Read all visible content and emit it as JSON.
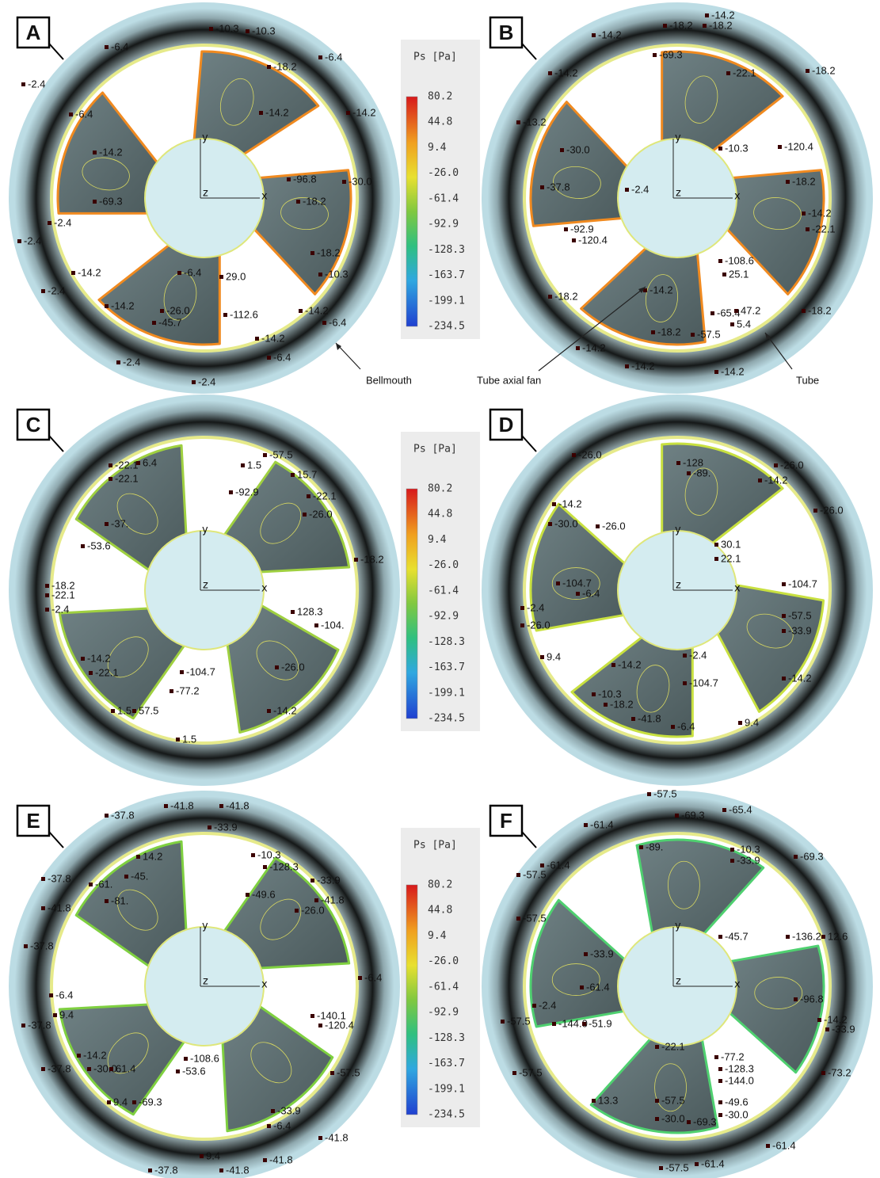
{
  "colorbar": {
    "title": "Ps [Pa]",
    "ticks": [
      "80.2",
      "44.8",
      "9.4",
      "-26.0",
      "-61.4",
      "-92.9",
      "-128.3",
      "-163.7",
      "-199.1",
      "-234.5"
    ]
  },
  "axes": {
    "x": "x",
    "y": "y",
    "z": "z"
  },
  "annotations": {
    "bellmouth": "Bellmouth",
    "fan": "Tube axial fan",
    "tube": "Tube"
  },
  "panels": [
    {
      "letter": "A",
      "labels": [
        "-10.3",
        "-10.3",
        "-6.4",
        "-6.4",
        "-18.2",
        "-2.4",
        "-14.2",
        "-14.2",
        "-6.4",
        "-14.2",
        "-96.8",
        "-30.0",
        "-69.3",
        "-18.2",
        "-2.4",
        "-2.4",
        "-18.2",
        "-14.2",
        "-6.4",
        "29.0",
        "-10.3",
        "-2.4",
        "-14.2",
        "-26.0",
        "-14.2",
        "-45.7",
        "-112.6",
        "-6.4",
        "-14.2",
        "-6.4",
        "-2.4",
        "-2.4"
      ]
    },
    {
      "letter": "B",
      "labels": [
        "-14.2",
        "-18.2",
        "-18.2",
        "-14.2",
        "-69.3",
        "-14.2",
        "-18.2",
        "-22.1",
        "-13.2",
        "-30.0",
        "-10.3",
        "-120.4",
        "-37.8",
        "-2.4",
        "-18.2",
        "-14.2",
        "-92.9",
        "-120.4",
        "-22.1",
        "-108.6",
        "25.1",
        "-14.2",
        "-18.2",
        "-65.4",
        "47.2",
        "5.4",
        "-18.2",
        "-18.2",
        "-57.5",
        "-14.2",
        "-14.2",
        "-14.2"
      ]
    },
    {
      "letter": "C",
      "labels": [
        "-22.1",
        "6.4",
        "-22.1",
        "1.5",
        "-57.5",
        "15.7",
        "-92.9",
        "-22.1",
        "-26.0",
        "-37.",
        "-53.6",
        "-18.2",
        "-18.2",
        "-22.1",
        "-2.4",
        "128.3",
        "-104.",
        "-14.2",
        "-22.1",
        "-104.7",
        "-26.0",
        "-77.2",
        "1.5",
        "57.5",
        "-14.2",
        "1.5"
      ]
    },
    {
      "letter": "D",
      "labels": [
        "-26.0",
        "-128",
        "-89.",
        "-26.0",
        "-14.2",
        "-14.2",
        "-26.0",
        "-30.0",
        "-26.0",
        "30.1",
        "22.1",
        "-104.7",
        "-6.4",
        "-104.7",
        "-2.4",
        "-57.5",
        "-26.0",
        "-33.9",
        "9.4",
        "-14.2",
        "-2.4",
        "-104.7",
        "-14.2",
        "-10.3",
        "-18.2",
        "-41.8",
        "-6.4",
        "9.4"
      ]
    },
    {
      "letter": "E",
      "labels": [
        "-41.8",
        "-41.8",
        "-37.8",
        "-33.9",
        "14.2",
        "-10.3",
        "-128.3",
        "-37.8",
        "-33.9",
        "-61.",
        "-45.",
        "-49.6",
        "-41.8",
        "-81.",
        "-26.0",
        "-41.8",
        "-37.8",
        "-6.4",
        "-6.4",
        "9.4",
        "-37.8",
        "-140.1",
        "-120.4",
        "-14.2",
        "-30.0",
        "61.4",
        "-108.6",
        "-53.6",
        "-57.5",
        "-37.8",
        "-33.9",
        "9.4",
        "-69.3",
        "-6.4",
        "-41.8",
        "9.4",
        "-41.8",
        "-37.8",
        "-41.8"
      ]
    },
    {
      "letter": "F",
      "labels": [
        "-57.5",
        "-69.3",
        "-65.4",
        "-61.4",
        "-69.3",
        "-89.",
        "-10.3",
        "-33.9",
        "-61.4",
        "-57.5",
        "-57.5",
        "-45.7",
        "-33.9",
        "-136.2",
        "12.6",
        "-61.4",
        "-96.8",
        "-2.4",
        "-33.9",
        "-57.5",
        "-144.0",
        "-51.9",
        "-14.2",
        "-22.1",
        "-77.2",
        "-128.3",
        "-144.0",
        "-73.2",
        "-57.5",
        "13.3",
        "-57.5",
        "-49.6",
        "-30.0",
        "-30.0",
        "-69.3",
        "-61.4",
        "-57.5",
        "-61.4"
      ]
    }
  ]
}
